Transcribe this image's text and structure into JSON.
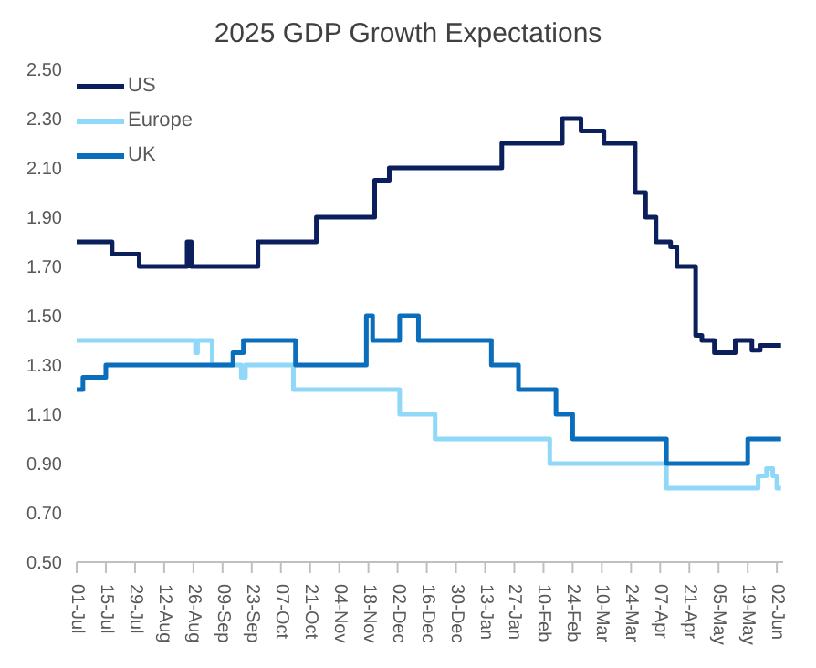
{
  "chart_data": {
    "type": "step",
    "title": "2025 GDP Growth Expectations",
    "xlim": [
      "2024-07-01",
      "2025-06-05"
    ],
    "xticks": [
      {
        "value": "2024-07-01",
        "label": "01-Jul"
      },
      {
        "value": "2024-07-15",
        "label": "15-Jul"
      },
      {
        "value": "2024-07-29",
        "label": "29-Jul"
      },
      {
        "value": "2024-08-12",
        "label": "12-Aug"
      },
      {
        "value": "2024-08-26",
        "label": "26-Aug"
      },
      {
        "value": "2024-09-09",
        "label": "09-Sep"
      },
      {
        "value": "2024-09-23",
        "label": "23-Sep"
      },
      {
        "value": "2024-10-07",
        "label": "07-Oct"
      },
      {
        "value": "2024-10-21",
        "label": "21-Oct"
      },
      {
        "value": "2024-11-04",
        "label": "04-Nov"
      },
      {
        "value": "2024-11-18",
        "label": "18-Nov"
      },
      {
        "value": "2024-12-02",
        "label": "02-Dec"
      },
      {
        "value": "2024-12-16",
        "label": "16-Dec"
      },
      {
        "value": "2024-12-30",
        "label": "30-Dec"
      },
      {
        "value": "2025-01-13",
        "label": "13-Jan"
      },
      {
        "value": "2025-01-27",
        "label": "27-Jan"
      },
      {
        "value": "2025-02-10",
        "label": "10-Feb"
      },
      {
        "value": "2025-02-24",
        "label": "24-Feb"
      },
      {
        "value": "2025-03-10",
        "label": "10-Mar"
      },
      {
        "value": "2025-03-24",
        "label": "24-Mar"
      },
      {
        "value": "2025-04-07",
        "label": "07-Apr"
      },
      {
        "value": "2025-04-21",
        "label": "21-Apr"
      },
      {
        "value": "2025-05-05",
        "label": "05-May"
      },
      {
        "value": "2025-05-19",
        "label": "19-May"
      },
      {
        "value": "2025-06-02",
        "label": "02-Jun"
      }
    ],
    "ylim": [
      0.5,
      2.5
    ],
    "yticks": [
      {
        "value": 0.5,
        "label": "0.50"
      },
      {
        "value": 0.7,
        "label": "0.70"
      },
      {
        "value": 0.9,
        "label": "0.90"
      },
      {
        "value": 1.1,
        "label": "1.10"
      },
      {
        "value": 1.3,
        "label": "1.30"
      },
      {
        "value": 1.5,
        "label": "1.50"
      },
      {
        "value": 1.7,
        "label": "1.70"
      },
      {
        "value": 1.9,
        "label": "1.90"
      },
      {
        "value": 2.1,
        "label": "2.10"
      },
      {
        "value": 2.3,
        "label": "2.30"
      },
      {
        "value": 2.5,
        "label": "2.50"
      }
    ],
    "grid": false,
    "legend": "top left",
    "marker": "none",
    "line_style": "solid",
    "series": [
      {
        "name": "US",
        "color": "#0b1f5c",
        "x": [
          "2024-07-01",
          "2024-07-18",
          "2024-07-31",
          "2024-08-23",
          "2024-08-25",
          "2024-09-26",
          "2024-10-24",
          "2024-11-21",
          "2024-11-28",
          "2025-01-21",
          "2025-02-19",
          "2025-02-28",
          "2025-03-11",
          "2025-03-26",
          "2025-03-31",
          "2025-04-05",
          "2025-04-12",
          "2025-04-15",
          "2025-04-24",
          "2025-04-27",
          "2025-05-03",
          "2025-05-13",
          "2025-05-21",
          "2025-05-25",
          "2025-06-04"
        ],
        "values": [
          1.8,
          1.75,
          1.7,
          1.8,
          1.7,
          1.8,
          1.9,
          2.05,
          2.1,
          2.2,
          2.3,
          2.25,
          2.2,
          2.0,
          1.9,
          1.8,
          1.78,
          1.7,
          1.42,
          1.4,
          1.35,
          1.4,
          1.36,
          1.38,
          1.38
        ]
      },
      {
        "name": "Europe",
        "color": "#8fd8f8",
        "x": [
          "2024-07-01",
          "2024-08-27",
          "2024-08-28",
          "2024-09-04",
          "2024-09-18",
          "2024-09-20",
          "2024-10-13",
          "2024-12-03",
          "2024-12-20",
          "2025-02-13",
          "2025-04-10",
          "2025-05-24",
          "2025-05-28",
          "2025-05-31",
          "2025-06-02",
          "2025-06-04"
        ],
        "values": [
          1.4,
          1.35,
          1.4,
          1.3,
          1.25,
          1.3,
          1.2,
          1.1,
          1.0,
          0.9,
          0.8,
          0.85,
          0.88,
          0.85,
          0.8,
          0.8
        ]
      },
      {
        "name": "UK",
        "color": "#0a6ebd",
        "x": [
          "2024-07-01",
          "2024-07-04",
          "2024-07-15",
          "2024-09-14",
          "2024-09-19",
          "2024-10-14",
          "2024-11-17",
          "2024-11-20",
          "2024-12-03",
          "2024-12-12",
          "2025-01-16",
          "2025-01-29",
          "2025-02-16",
          "2025-02-24",
          "2025-04-10",
          "2025-05-19",
          "2025-06-04"
        ],
        "values": [
          1.2,
          1.25,
          1.3,
          1.35,
          1.4,
          1.3,
          1.5,
          1.4,
          1.5,
          1.4,
          1.3,
          1.2,
          1.1,
          1.0,
          0.9,
          1.0,
          1.0
        ]
      }
    ]
  }
}
